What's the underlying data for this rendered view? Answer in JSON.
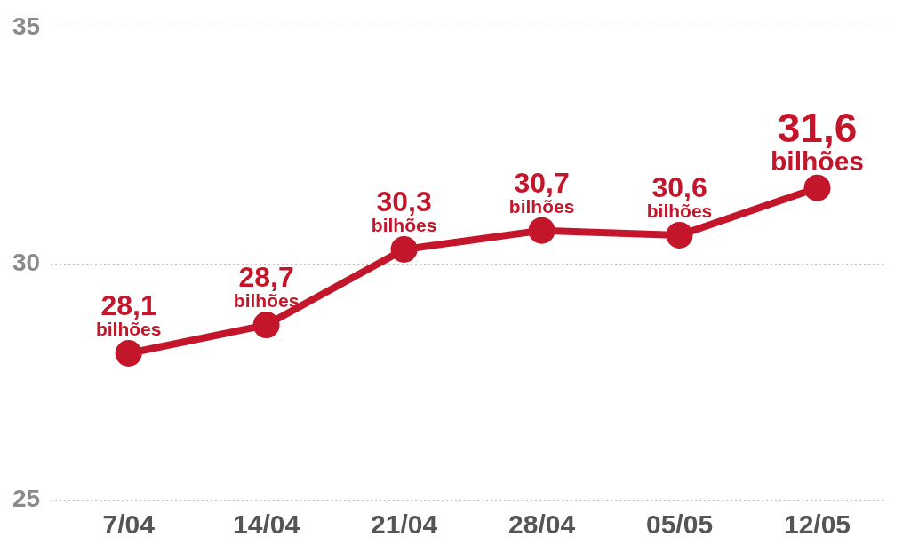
{
  "chart_data": {
    "type": "line",
    "categories": [
      "7/04",
      "14/04",
      "21/04",
      "28/04",
      "05/05",
      "12/05"
    ],
    "series": [
      {
        "color": "#c4162a",
        "values": [
          28.1,
          28.7,
          30.3,
          30.7,
          30.6,
          31.6
        ]
      }
    ],
    "value_labels": [
      "28,1 bilhões",
      "28,7 bilhões",
      "30,3 bilhões",
      "30,7 bilhões",
      "30,6 bilhões",
      "31,6 bilhões"
    ],
    "ylim": [
      25,
      35
    ],
    "yticks": [
      25,
      30,
      35
    ],
    "grid": "y",
    "legend": false,
    "marker": "circle",
    "line_style": "solid"
  }
}
